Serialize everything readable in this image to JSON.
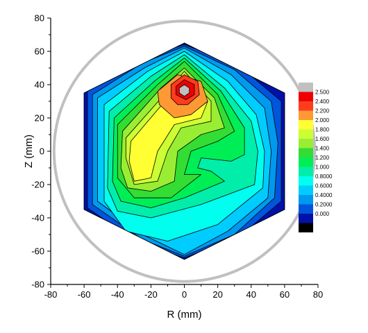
{
  "chart_data": {
    "type": "heatmap",
    "subtype": "filled-contour",
    "xlabel": "R (mm)",
    "ylabel": "Z (mm)",
    "xlim": [
      -80,
      80
    ],
    "ylim": [
      -80,
      80
    ],
    "xticks": [
      "-80",
      "-60",
      "-40",
      "-20",
      "0",
      "20",
      "40",
      "60",
      "80"
    ],
    "yticks": [
      "-80",
      "-60",
      "-40",
      "-20",
      "0",
      "20",
      "40",
      "60",
      "80"
    ],
    "grid": false,
    "outline_circle": {
      "center": [
        0,
        0
      ],
      "radius": 78,
      "color": "#c0c0c0"
    },
    "domain_hexagon": [
      [
        0,
        65
      ],
      [
        60,
        35
      ],
      [
        60,
        -35
      ],
      [
        0,
        -65
      ],
      [
        -60,
        -35
      ],
      [
        -60,
        35
      ]
    ],
    "colorbar": {
      "placement": "right",
      "levels": [
        {
          "label": "",
          "color": "#c0c0c0"
        },
        {
          "label": "2.500",
          "color": "#ee0000"
        },
        {
          "label": "2.400",
          "color": "#ff3c1e"
        },
        {
          "label": "2.200",
          "color": "#ff9933"
        },
        {
          "label": "2.000",
          "color": "#ffff33"
        },
        {
          "label": "1.800",
          "color": "#ccff33"
        },
        {
          "label": "1.600",
          "color": "#99ee33"
        },
        {
          "label": "1.400",
          "color": "#33dd33"
        },
        {
          "label": "1.200",
          "color": "#00ee55"
        },
        {
          "label": "1.000",
          "color": "#00eeaa"
        },
        {
          "label": "0.8000",
          "color": "#00ffee"
        },
        {
          "label": "0.6000",
          "color": "#00ccff"
        },
        {
          "label": "0.4000",
          "color": "#0099ee"
        },
        {
          "label": "0.2000",
          "color": "#0055dd"
        },
        {
          "label": "0.000",
          "color": "#0011aa"
        },
        {
          "label": "",
          "color": "#000000"
        }
      ]
    },
    "peak": {
      "r": 0,
      "z": 35,
      "value": 2.55
    },
    "contours": [
      {
        "level": 0.2,
        "color": "#0055dd",
        "points": [
          [
            -58,
            36
          ],
          [
            -28,
            55
          ],
          [
            0,
            64
          ],
          [
            32,
            52
          ],
          [
            58,
            30
          ],
          [
            58,
            -30
          ],
          [
            32,
            -52
          ],
          [
            0,
            -64
          ],
          [
            -28,
            -55
          ],
          [
            -58,
            -34
          ]
        ]
      },
      {
        "level": 0.4,
        "color": "#0099ee",
        "points": [
          [
            -55,
            34
          ],
          [
            -25,
            53
          ],
          [
            0,
            63
          ],
          [
            30,
            49
          ],
          [
            52,
            30
          ],
          [
            56,
            5
          ],
          [
            54,
            -28
          ],
          [
            30,
            -50
          ],
          [
            0,
            -63
          ],
          [
            -25,
            -53
          ],
          [
            -55,
            -32
          ]
        ]
      },
      {
        "level": 0.6,
        "color": "#00ccff",
        "points": [
          [
            -52,
            32
          ],
          [
            -24,
            50
          ],
          [
            0,
            62
          ],
          [
            28,
            46
          ],
          [
            48,
            26
          ],
          [
            52,
            0
          ],
          [
            50,
            -28
          ],
          [
            26,
            -48
          ],
          [
            0,
            -62
          ],
          [
            -25,
            -50
          ],
          [
            -52,
            -30
          ]
        ]
      },
      {
        "level": 0.8,
        "color": "#00ffee",
        "points": [
          [
            -48,
            28
          ],
          [
            -22,
            48
          ],
          [
            0,
            60
          ],
          [
            26,
            42
          ],
          [
            43,
            22
          ],
          [
            48,
            0
          ],
          [
            47,
            -22
          ],
          [
            20,
            -44
          ],
          [
            -10,
            -54
          ],
          [
            -35,
            -48
          ],
          [
            -48,
            -30
          ]
        ]
      },
      {
        "level": 1.0,
        "color": "#00eeaa",
        "points": [
          [
            -45,
            24
          ],
          [
            -20,
            45
          ],
          [
            0,
            58
          ],
          [
            24,
            38
          ],
          [
            40,
            18
          ],
          [
            44,
            0
          ],
          [
            42,
            -20
          ],
          [
            10,
            -32
          ],
          [
            -20,
            -40
          ],
          [
            -40,
            -36
          ],
          [
            -46,
            -22
          ]
        ]
      },
      {
        "level": 1.2,
        "color": "#00ee55",
        "points": [
          [
            -42,
            20
          ],
          [
            -18,
            42
          ],
          [
            0,
            56
          ],
          [
            22,
            36
          ],
          [
            36,
            14
          ],
          [
            36,
            -2
          ],
          [
            28,
            -6
          ],
          [
            10,
            -4
          ],
          [
            8,
            -10
          ],
          [
            16,
            -12
          ],
          [
            24,
            -18
          ],
          [
            0,
            -28
          ],
          [
            -20,
            -34
          ],
          [
            -38,
            -30
          ],
          [
            -43,
            -18
          ]
        ]
      },
      {
        "level": 1.4,
        "color": "#33dd33",
        "points": [
          [
            -40,
            16
          ],
          [
            -16,
            40
          ],
          [
            0,
            54
          ],
          [
            20,
            34
          ],
          [
            30,
            12
          ],
          [
            20,
            6
          ],
          [
            4,
            0
          ],
          [
            0,
            -14
          ],
          [
            10,
            -14
          ],
          [
            -8,
            -28
          ],
          [
            -30,
            -28
          ],
          [
            -40,
            -16
          ]
        ]
      },
      {
        "level": 1.6,
        "color": "#99ee33",
        "points": [
          [
            -37,
            12
          ],
          [
            -14,
            38
          ],
          [
            0,
            50
          ],
          [
            18,
            32
          ],
          [
            24,
            14
          ],
          [
            10,
            10
          ],
          [
            -4,
            0
          ],
          [
            -6,
            -18
          ],
          [
            -20,
            -24
          ],
          [
            -34,
            -22
          ],
          [
            -38,
            -10
          ]
        ]
      },
      {
        "level": 1.8,
        "color": "#ccff33",
        "points": [
          [
            -35,
            8
          ],
          [
            -12,
            34
          ],
          [
            0,
            48
          ],
          [
            16,
            30
          ],
          [
            16,
            18
          ],
          [
            -2,
            14
          ],
          [
            -10,
            0
          ],
          [
            -16,
            -18
          ],
          [
            -30,
            -20
          ],
          [
            -35,
            -4
          ]
        ]
      },
      {
        "level": 2.0,
        "color": "#ffff33",
        "points": [
          [
            -32,
            6
          ],
          [
            -10,
            32
          ],
          [
            0,
            46
          ],
          [
            14,
            30
          ],
          [
            10,
            20
          ],
          [
            -6,
            16
          ],
          [
            -16,
            0
          ],
          [
            -20,
            -16
          ],
          [
            -30,
            -18
          ],
          [
            -33,
            -6
          ]
        ]
      },
      {
        "level": 2.2,
        "color": "#ff9933",
        "points": [
          [
            -15,
            28
          ],
          [
            -16,
            36
          ],
          [
            -4,
            46
          ],
          [
            10,
            42
          ],
          [
            14,
            30
          ],
          [
            4,
            22
          ],
          [
            -6,
            20
          ]
        ]
      },
      {
        "level": 2.4,
        "color": "#ff3c1e",
        "points": [
          [
            -8,
            32
          ],
          [
            -8,
            40
          ],
          [
            0,
            46
          ],
          [
            8,
            42
          ],
          [
            9,
            34
          ],
          [
            2,
            28
          ],
          [
            -4,
            28
          ]
        ]
      },
      {
        "level": 2.5,
        "color": "#ee0000",
        "points": [
          [
            -5,
            34
          ],
          [
            -5,
            39
          ],
          [
            0,
            43
          ],
          [
            6,
            40
          ],
          [
            6,
            34
          ],
          [
            1,
            31
          ]
        ]
      },
      {
        "level": 2.55,
        "color": "#c0c0c0",
        "points": [
          [
            -3,
            35
          ],
          [
            -3,
            38
          ],
          [
            0,
            40
          ],
          [
            3,
            38
          ],
          [
            3,
            35
          ],
          [
            0,
            33
          ]
        ]
      }
    ]
  }
}
